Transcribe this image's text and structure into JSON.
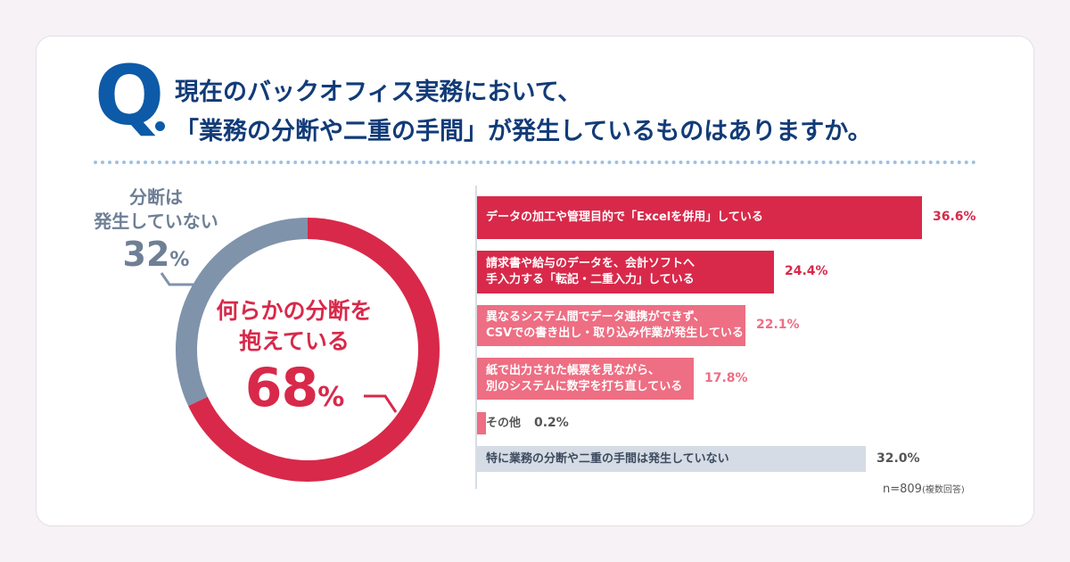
{
  "question": {
    "mark": "Q",
    "line1": "現在のバックオフィス実務において、",
    "line2": "「業務の分断や二重の手間」が発生しているものはありますか。"
  },
  "colors": {
    "title": "#123b78",
    "red_dark": "#d8294a",
    "red_light": "#ee6e83",
    "gray_blue": "#7f93ab",
    "gray_light": "#d5dce5",
    "dots": "#9cc1e3"
  },
  "donut": {
    "not_split_line1": "分断は",
    "not_split_line2": "発生していない",
    "not_split_value": "32",
    "split_line1": "何らかの分断を",
    "split_line2": "抱えている",
    "split_value": "68",
    "pct_sign": "%"
  },
  "chart_data": [
    {
      "type": "pie",
      "labels": [
        "何らかの分断を抱えている",
        "分断は発生していない"
      ],
      "values": [
        68,
        32
      ]
    },
    {
      "type": "bar",
      "orientation": "horizontal",
      "categories": [
        [
          "データの加工や管理目的で「Excelを併用」している"
        ],
        [
          "請求書や給与のデータを、会計ソフトへ",
          "手入力する「転記・二重入力」している"
        ],
        [
          "異なるシステム間でデータ連携ができず、",
          "CSVでの書き出し・取り込み作業が発生している"
        ],
        [
          "紙で出力された帳票を見ながら、",
          "別のシステムに数字を打ち直している"
        ],
        [
          "その他"
        ],
        [
          "特に業務の分断や二重の手間は発生していない"
        ]
      ],
      "values": [
        36.6,
        24.4,
        22.1,
        17.8,
        0.2,
        32.0
      ],
      "value_labels": [
        "36.6%",
        "24.4%",
        "22.1%",
        "17.8%",
        "0.2%",
        "32.0%"
      ],
      "note": "n=809",
      "note_sub": "(複数回答)"
    }
  ]
}
